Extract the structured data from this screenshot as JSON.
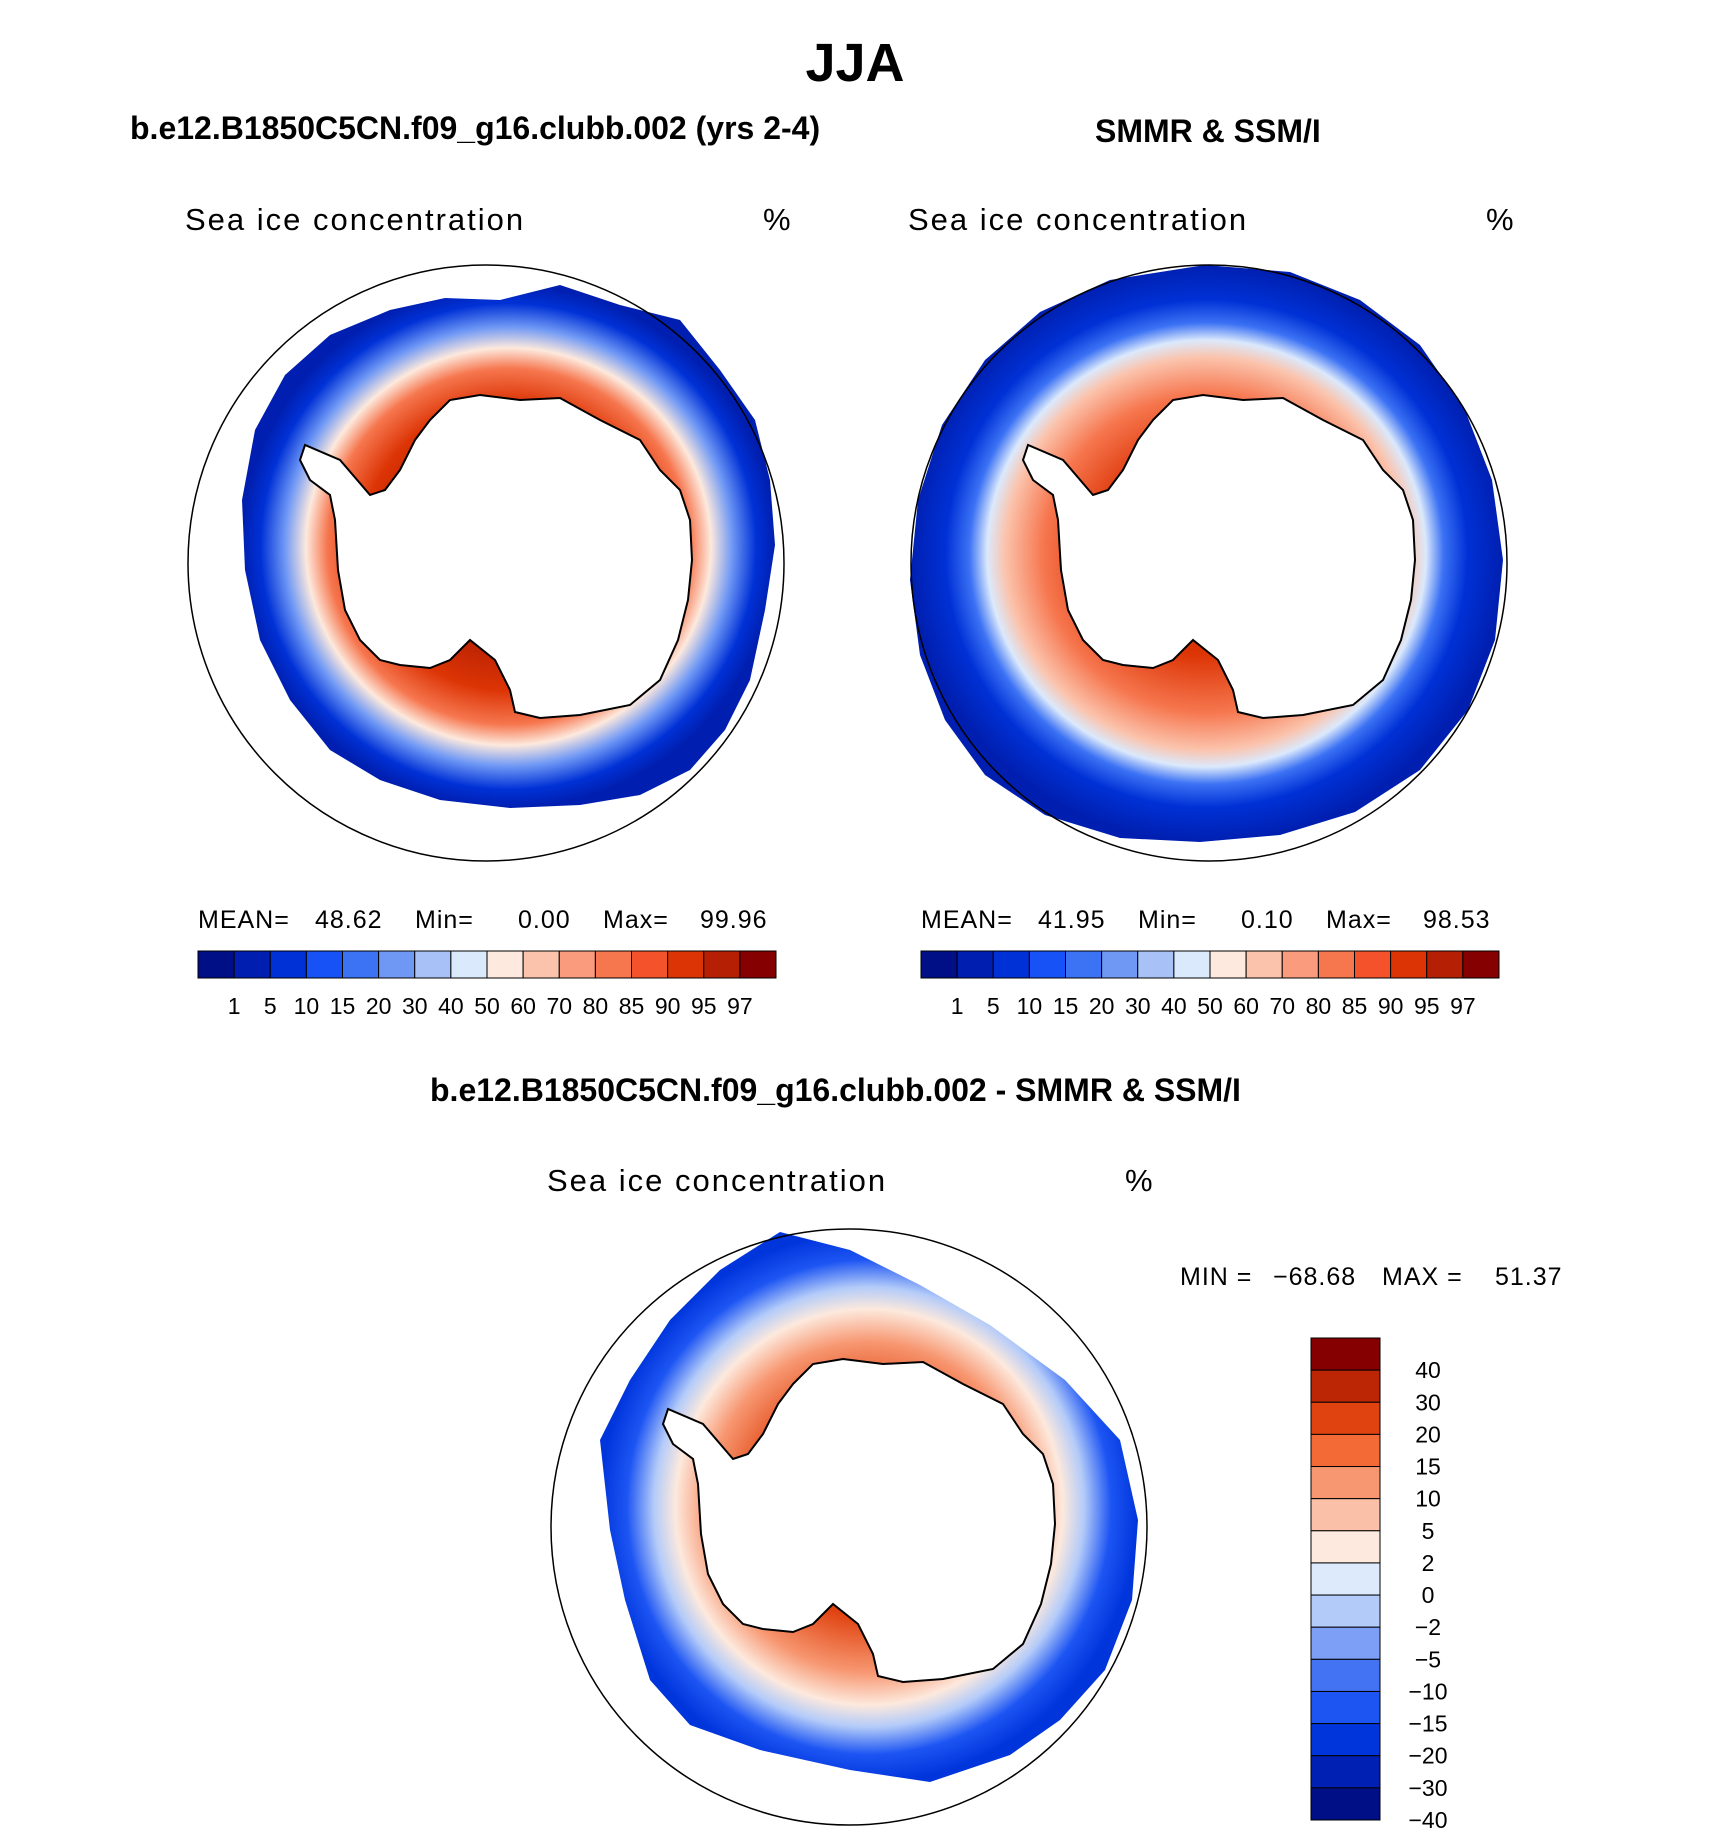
{
  "figure": {
    "title": "JJA",
    "colors": {
      "concentration": [
        "#000f86",
        "#001fb0",
        "#0031d6",
        "#1652f5",
        "#3c72f4",
        "#6f98f5",
        "#a8c2f8",
        "#dbe9fc",
        "#fde9dd",
        "#fbc3ac",
        "#f99b7c",
        "#f6764e",
        "#f4522a",
        "#dc3405",
        "#b51f04",
        "#850000"
      ],
      "difference": [
        "#000f86",
        "#0020b4",
        "#0035dc",
        "#1d55f3",
        "#4372f3",
        "#7d9ff5",
        "#b3cbf9",
        "#dceafc",
        "#fde9dd",
        "#fbc1a8",
        "#f79771",
        "#f46a36",
        "#e04310",
        "#bc2604",
        "#850000"
      ]
    }
  },
  "chart_data": [
    {
      "type": "heatmap",
      "projection": "south-polar-stereographic",
      "title": "b.e12.B1850C5CN.f09_g16.clubb.002 (yrs 2-4)",
      "variable": "Sea ice concentration",
      "units": "%",
      "stats": {
        "mean_label": "MEAN=",
        "mean": "48.62",
        "min_label": "Min=",
        "min": "0.00",
        "max_label": "Max=",
        "max": "99.96"
      },
      "colorbar_ticks": [
        "1",
        "5",
        "10",
        "15",
        "20",
        "30",
        "40",
        "50",
        "60",
        "70",
        "80",
        "85",
        "90",
        "95",
        "97"
      ]
    },
    {
      "type": "heatmap",
      "projection": "south-polar-stereographic",
      "title": "SMMR & SSM/I",
      "variable": "Sea ice concentration",
      "units": "%",
      "stats": {
        "mean_label": "MEAN=",
        "mean": "41.95",
        "min_label": "Min=",
        "min": "0.10",
        "max_label": "Max=",
        "max": "98.53"
      },
      "colorbar_ticks": [
        "1",
        "5",
        "10",
        "15",
        "20",
        "30",
        "40",
        "50",
        "60",
        "70",
        "80",
        "85",
        "90",
        "95",
        "97"
      ]
    },
    {
      "type": "heatmap",
      "projection": "south-polar-stereographic",
      "title": "b.e12.B1850C5CN.f09_g16.clubb.002 - SMMR & SSM/I",
      "variable": "Sea ice concentration",
      "units": "%",
      "stats": {
        "min_label": "MIN =",
        "min": "−68.68",
        "max_label": "MAX =",
        "max": "51.37"
      },
      "colorbar_ticks": [
        "40",
        "30",
        "20",
        "15",
        "10",
        "5",
        "2",
        "0",
        "−2",
        "−5",
        "−10",
        "−15",
        "−20",
        "−30",
        "−40"
      ]
    }
  ]
}
